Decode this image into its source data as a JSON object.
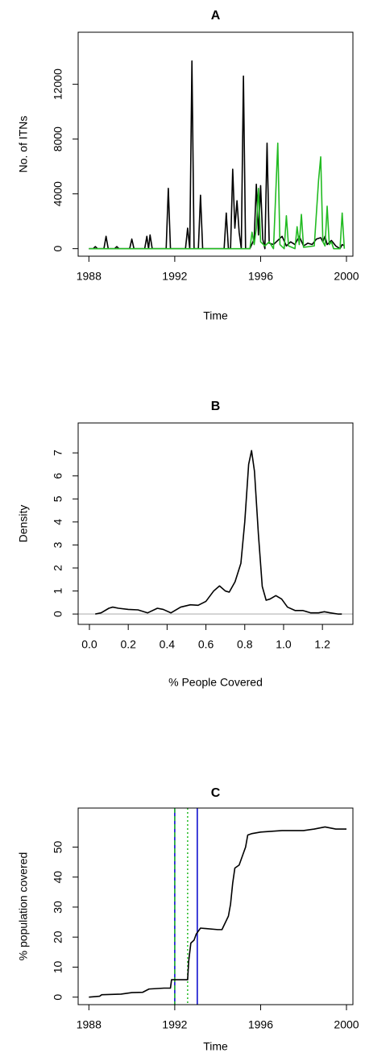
{
  "chart_data": [
    {
      "type": "line",
      "title": "A",
      "x_label": "Time",
      "y_label": "No. of ITNs",
      "xlim": [
        1987.5,
        2000.3
      ],
      "ylim": [
        -550,
        15800
      ],
      "xticks": [
        1988,
        1992,
        1996,
        2000
      ],
      "yticks": [
        0,
        4000,
        8000,
        12000
      ],
      "series": [
        {
          "color": "#000000",
          "x": [
            1988.0,
            1988.2,
            1988.3,
            1988.4,
            1988.7,
            1988.8,
            1988.9,
            1989.2,
            1989.3,
            1989.4,
            1989.9,
            1990.0,
            1990.1,
            1990.6,
            1990.7,
            1990.78,
            1990.85,
            1990.95,
            1991.6,
            1991.7,
            1991.8,
            1992.5,
            1992.6,
            1992.7,
            1992.8,
            1992.9,
            1993.1,
            1993.2,
            1993.3,
            1994.3,
            1994.4,
            1994.5,
            1994.6,
            1994.7,
            1994.8,
            1994.9,
            1995.0,
            1995.1,
            1995.2,
            1995.3,
            1995.5,
            1995.7,
            1995.8,
            1995.9,
            1996.0,
            1996.1,
            1996.2,
            1996.3,
            1996.4,
            1996.6,
            1996.8,
            1997.0,
            1997.2,
            1997.4,
            1997.6,
            1997.8,
            1998.0,
            1998.2,
            1998.4,
            1998.6,
            1998.8,
            1998.9,
            1999.0,
            1999.1,
            1999.3,
            1999.5,
            1999.7,
            1999.8,
            1999.9
          ],
          "values": [
            0,
            0,
            150,
            0,
            0,
            900,
            0,
            0,
            150,
            0,
            0,
            700,
            0,
            0,
            900,
            0,
            1000,
            0,
            0,
            4400,
            0,
            0,
            1500,
            0,
            13700,
            0,
            0,
            3900,
            0,
            0,
            2600,
            0,
            0,
            5800,
            1500,
            3500,
            1200,
            0,
            12600,
            0,
            0,
            700,
            4700,
            1000,
            4600,
            700,
            0,
            7700,
            400,
            300,
            600,
            900,
            200,
            500,
            300,
            900,
            200,
            400,
            300,
            700,
            800,
            500,
            900,
            300,
            600,
            200,
            0,
            300,
            200
          ]
        },
        {
          "color": "#22bb22",
          "x": [
            1988.0,
            1995.5,
            1995.6,
            1995.7,
            1995.8,
            1995.9,
            1996.0,
            1996.2,
            1996.4,
            1996.6,
            1996.8,
            1996.9,
            1997.1,
            1997.2,
            1997.3,
            1997.6,
            1997.7,
            1997.8,
            1997.9,
            1998.0,
            1998.5,
            1998.7,
            1998.8,
            1998.9,
            1999.0,
            1999.1,
            1999.2,
            1999.3,
            1999.4,
            1999.7,
            1999.8,
            1999.9
          ],
          "values": [
            0,
            0,
            1200,
            300,
            1500,
            4400,
            500,
            200,
            500,
            0,
            7700,
            300,
            0,
            2400,
            200,
            0,
            1600,
            300,
            2500,
            100,
            200,
            5000,
            6700,
            500,
            200,
            3100,
            300,
            500,
            0,
            0,
            2600,
            0
          ]
        }
      ]
    },
    {
      "type": "line",
      "title": "B",
      "x_label": "% People Covered",
      "y_label": "Density",
      "xlim": [
        -0.058,
        1.357
      ],
      "ylim": [
        -0.45,
        8.3
      ],
      "xticks": [
        {
          "value": 0.0,
          "label": "0.0"
        },
        0.2,
        0.4,
        0.6,
        0.8,
        {
          "value": 1.0,
          "label": "1.0"
        },
        1.2
      ],
      "yticks": [
        0,
        1,
        2,
        3,
        4,
        5,
        6,
        7
      ],
      "hline": {
        "y": 0,
        "color": "#bbbbbb"
      },
      "series": [
        {
          "color": "#000000",
          "x": [
            0.03,
            0.06,
            0.1,
            0.12,
            0.15,
            0.2,
            0.25,
            0.3,
            0.35,
            0.38,
            0.42,
            0.47,
            0.52,
            0.56,
            0.6,
            0.64,
            0.67,
            0.7,
            0.72,
            0.75,
            0.78,
            0.8,
            0.82,
            0.835,
            0.85,
            0.87,
            0.89,
            0.91,
            0.93,
            0.96,
            0.99,
            1.02,
            1.06,
            1.1,
            1.14,
            1.18,
            1.21,
            1.24,
            1.28,
            1.3
          ],
          "values": [
            0,
            0.05,
            0.25,
            0.3,
            0.25,
            0.2,
            0.18,
            0.05,
            0.25,
            0.2,
            0.05,
            0.3,
            0.4,
            0.38,
            0.55,
            1.0,
            1.22,
            1.0,
            0.95,
            1.4,
            2.2,
            4.0,
            6.5,
            7.1,
            6.2,
            3.5,
            1.2,
            0.6,
            0.65,
            0.8,
            0.65,
            0.3,
            0.15,
            0.15,
            0.05,
            0.05,
            0.1,
            0.05,
            0,
            0
          ]
        }
      ]
    },
    {
      "type": "line",
      "title": "C",
      "x_label": "Time",
      "y_label": "% population covered",
      "xlim": [
        1987.5,
        2000.3
      ],
      "ylim": [
        -2.5,
        63
      ],
      "xticks": [
        1988,
        1992,
        1996,
        2000
      ],
      "yticks": [
        0,
        10,
        20,
        30,
        40,
        50
      ],
      "vlines": [
        {
          "x": 1992.0,
          "color": "#0000cc",
          "style": "solid"
        },
        {
          "x": 1992.0,
          "color": "#22bb22",
          "style": "dashed"
        },
        {
          "x": 1992.6,
          "color": "#22bb22",
          "style": "dotted"
        },
        {
          "x": 1993.05,
          "color": "#0000cc",
          "style": "solid"
        }
      ],
      "series": [
        {
          "color": "#000000",
          "x": [
            1988.0,
            1988.5,
            1988.6,
            1989.5,
            1990.0,
            1990.5,
            1990.8,
            1991.5,
            1991.8,
            1991.85,
            1992.6,
            1992.65,
            1992.75,
            1992.9,
            1993.0,
            1993.2,
            1994.0,
            1994.2,
            1994.3,
            1994.5,
            1994.6,
            1994.7,
            1994.8,
            1995.0,
            1995.2,
            1995.3,
            1995.4,
            1995.6,
            1996.0,
            1997.0,
            1998.0,
            1998.5,
            1999.0,
            1999.5,
            2000.0
          ],
          "values": [
            0,
            0.3,
            0.8,
            1,
            1.5,
            1.6,
            2.7,
            3,
            3,
            5.8,
            5.8,
            12,
            18,
            19,
            21,
            23,
            22.5,
            22.5,
            24,
            27,
            31,
            38,
            43,
            44,
            48,
            50,
            54,
            54.5,
            55,
            55.5,
            55.5,
            56,
            56.7,
            56,
            56
          ]
        }
      ]
    }
  ]
}
